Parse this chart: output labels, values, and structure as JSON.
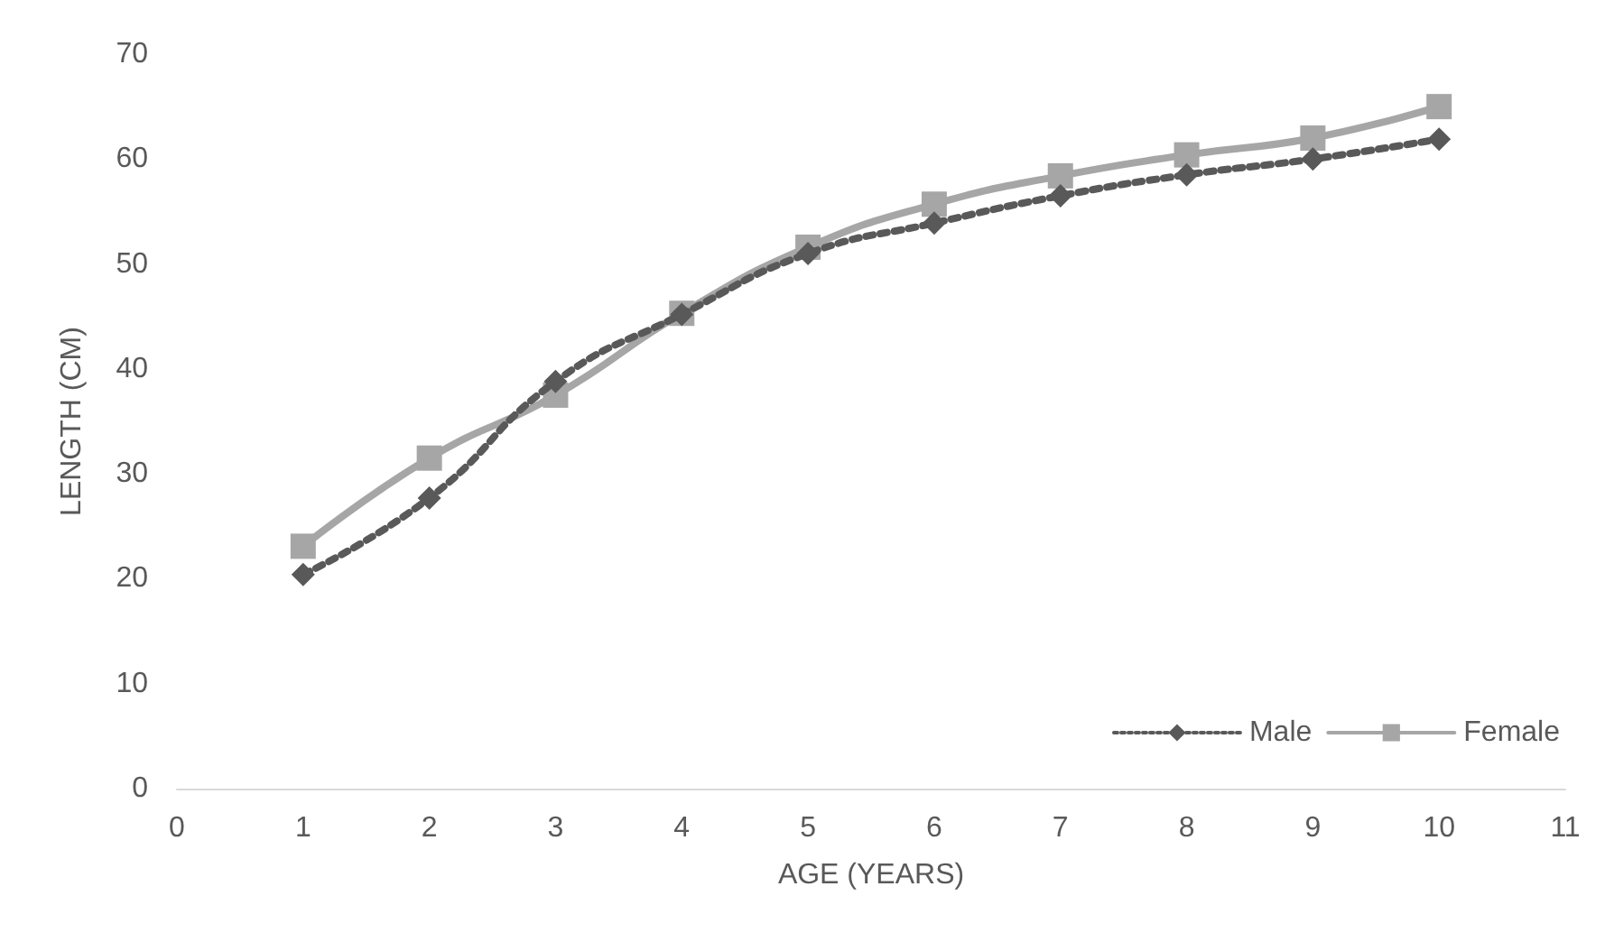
{
  "chart_data": {
    "type": "line",
    "xlabel": "AGE (YEARS)",
    "ylabel": "LENGTH (CM)",
    "x": [
      1,
      2,
      3,
      4,
      5,
      6,
      7,
      8,
      9,
      10
    ],
    "xlim": [
      0,
      11
    ],
    "xticks": [
      0,
      1,
      2,
      3,
      4,
      5,
      6,
      7,
      8,
      9,
      10,
      11
    ],
    "ylim": [
      0,
      70
    ],
    "yticks": [
      0,
      10,
      20,
      30,
      40,
      50,
      60,
      70
    ],
    "grid": false,
    "legend": "bottom right",
    "series": [
      {
        "name": "Male",
        "color": "#595959",
        "marker": "diamond",
        "line_style": "dotted",
        "values": [
          20.4,
          27.7,
          38.8,
          45.2,
          51,
          53.9,
          56.5,
          58.5,
          60,
          61.9
        ]
      },
      {
        "name": "Female",
        "color": "#a6a6a6",
        "marker": "square",
        "line_style": "solid",
        "values": [
          23.1,
          31.5,
          37.5,
          45.3,
          51.6,
          55.7,
          58.4,
          60.4,
          62,
          65
        ]
      }
    ]
  }
}
